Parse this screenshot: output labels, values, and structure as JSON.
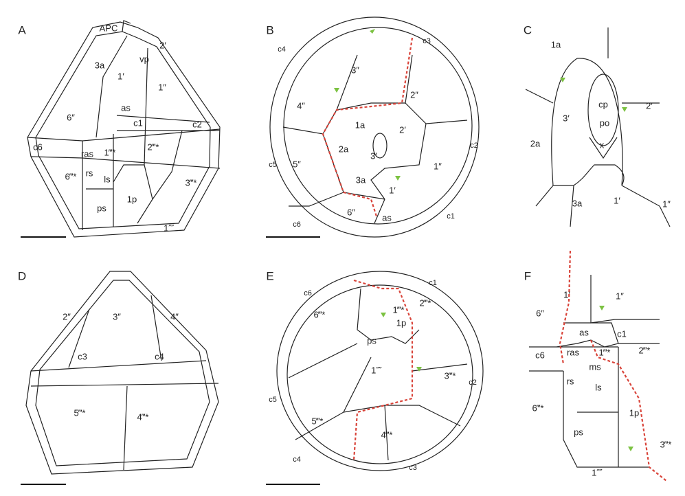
{
  "panels": [
    {
      "letter": "A",
      "labels": [
        "APC",
        "vp",
        "2′",
        "3a",
        "1′",
        "1″",
        "as",
        "6″",
        "c1",
        "c2",
        "c6",
        "ras",
        "1‴*",
        "2‴*",
        "rs",
        "ls",
        "6‴*",
        "3‴*",
        "ps",
        "1p",
        "1⁗"
      ]
    },
    {
      "letter": "B",
      "labels": [
        "c4",
        "c3",
        "3″",
        "2″",
        "4″",
        "1a",
        "2′",
        "2a",
        "3′",
        "5″",
        "3a",
        "1″",
        "1′",
        "c5",
        "c2",
        "6″",
        "as",
        "c6",
        "c1"
      ]
    },
    {
      "letter": "C",
      "labels": [
        "1a",
        "cp",
        "2′",
        "3′",
        "po",
        "2a",
        "x",
        "3a",
        "1′",
        "1″"
      ]
    },
    {
      "letter": "D",
      "labels": [
        "2″",
        "3″",
        "4″",
        "c3",
        "c4",
        "5‴*",
        "4‴*"
      ]
    },
    {
      "letter": "E",
      "labels": [
        "c6",
        "c1",
        "1‴*",
        "2‴*",
        "6‴*",
        "1p",
        "ps",
        "1⁗",
        "3‴*",
        "c5",
        "c2",
        "5‴*",
        "4‴*",
        "c4",
        "c3"
      ]
    },
    {
      "letter": "F",
      "labels": [
        "1′",
        "1″",
        "6″",
        "as",
        "c1",
        "2‴*",
        "c6",
        "ras",
        "1‴*",
        "ms",
        "rs",
        "ls",
        "6‴*",
        "1p",
        "ps",
        "3‴*",
        "1⁗"
      ]
    }
  ]
}
